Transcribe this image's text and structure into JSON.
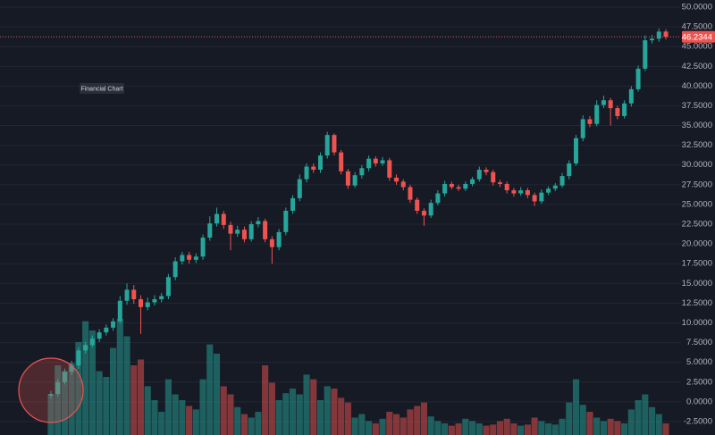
{
  "chart_data": {
    "type": "candlestick",
    "title": "Financial Chart",
    "up_color": "#26a69a",
    "down_color": "#ef5350",
    "grid": true,
    "ylim": [
      -4.2,
      50.9
    ],
    "yticks": [
      {
        "value": -2.5,
        "label": "-2.5000"
      },
      {
        "value": 0,
        "label": "0.0000"
      },
      {
        "value": 2.5,
        "label": "2.5000"
      },
      {
        "value": 5,
        "label": "5.0000"
      },
      {
        "value": 7.5,
        "label": "7.5000"
      },
      {
        "value": 10,
        "label": "10.0000"
      },
      {
        "value": 12.5,
        "label": "12.5000"
      },
      {
        "value": 15,
        "label": "15.0000"
      },
      {
        "value": 17.5,
        "label": "17.5000"
      },
      {
        "value": 20,
        "label": "20.0000"
      },
      {
        "value": 22.5,
        "label": "22.5000"
      },
      {
        "value": 25,
        "label": "25.0000"
      },
      {
        "value": 27.5,
        "label": "27.5000"
      },
      {
        "value": 30,
        "label": "30.0000"
      },
      {
        "value": 32.5,
        "label": "32.5000"
      },
      {
        "value": 35,
        "label": "35.0000"
      },
      {
        "value": 37.5,
        "label": "37.5000"
      },
      {
        "value": 40,
        "label": "40.0000"
      },
      {
        "value": 42.5,
        "label": "42.5000"
      },
      {
        "value": 45,
        "label": "45.0000"
      },
      {
        "value": 47.5,
        "label": "47.5000"
      },
      {
        "value": 50,
        "label": "50.0000"
      }
    ],
    "open": [
      0.8,
      1.0,
      2.5,
      3.8,
      4.6,
      6.5,
      7.2,
      8.0,
      8.8,
      9.4,
      10.2,
      12.8,
      14.2,
      13.0,
      12.0,
      12.6,
      13.0,
      13.4,
      15.8,
      17.8,
      18.6,
      18.0,
      18.4,
      20.8,
      22.6,
      23.8,
      22.4,
      21.3,
      21.8,
      20.6,
      22.5,
      22.9,
      20.6,
      19.6,
      21.5,
      24.2,
      25.8,
      28.2,
      29.8,
      29.4,
      31.2,
      33.8,
      31.6,
      29.2,
      27.4,
      28.7,
      29.6,
      30.8,
      30.2,
      30.6,
      28.4,
      27.9,
      27.2,
      25.6,
      24.2,
      23.6,
      25.2,
      26.4,
      27.6,
      27.2,
      27.0,
      27.6,
      28.2,
      29.4,
      29.1,
      27.8,
      27.6,
      26.8,
      26.4,
      26.8,
      26.2,
      25.4,
      26.5,
      27.0,
      27.4,
      28.6,
      30.2,
      33.4,
      35.8,
      35.2,
      37.6,
      38.2,
      37.2,
      36.2,
      37.8,
      39.6,
      42.2,
      45.8,
      46.0,
      46.9
    ],
    "high": [
      1.4,
      2.9,
      4.2,
      5.2,
      6.9,
      7.6,
      8.4,
      9.2,
      9.8,
      10.6,
      13.4,
      15.0,
      14.8,
      13.5,
      13.2,
      13.5,
      13.8,
      16.2,
      18.3,
      19.0,
      19.0,
      18.8,
      21.2,
      23.5,
      24.6,
      24.2,
      22.8,
      22.3,
      22.2,
      22.9,
      23.4,
      23.2,
      21.0,
      21.9,
      24.6,
      26.2,
      28.8,
      30.2,
      30.2,
      31.6,
      34.2,
      34.0,
      31.9,
      29.5,
      29.1,
      30.0,
      31.2,
      31.1,
      31.0,
      30.9,
      28.8,
      28.2,
      27.5,
      25.9,
      24.5,
      25.6,
      26.8,
      28.0,
      27.9,
      27.5,
      27.9,
      28.5,
      29.8,
      29.7,
      29.4,
      28.1,
      27.9,
      27.1,
      27.2,
      27.1,
      26.5,
      26.9,
      27.3,
      27.7,
      29.0,
      30.6,
      33.8,
      36.3,
      36.2,
      38.2,
      38.8,
      38.5,
      37.5,
      38.2,
      40.0,
      42.6,
      46.4,
      46.5,
      47.3,
      47.2
    ],
    "low": [
      0.4,
      0.7,
      2.2,
      3.4,
      4.2,
      6.1,
      6.9,
      7.6,
      8.4,
      9.0,
      9.9,
      12.3,
      12.4,
      8.6,
      11.6,
      12.2,
      12.6,
      13.0,
      15.4,
      17.4,
      17.5,
      17.6,
      18.0,
      20.4,
      22.2,
      21.9,
      19.2,
      20.9,
      20.2,
      20.3,
      22.1,
      20.2,
      17.5,
      19.2,
      21.1,
      23.8,
      25.4,
      27.8,
      29.0,
      29.0,
      30.8,
      31.2,
      28.8,
      27.0,
      27.1,
      28.3,
      29.2,
      29.8,
      29.9,
      28.0,
      27.5,
      26.8,
      25.2,
      23.8,
      22.3,
      23.3,
      24.9,
      26.0,
      26.9,
      26.7,
      26.7,
      27.3,
      27.9,
      28.7,
      27.4,
      27.2,
      26.4,
      26.0,
      26.1,
      25.8,
      24.8,
      25.1,
      26.2,
      26.7,
      27.1,
      28.2,
      29.9,
      33.0,
      34.8,
      34.9,
      37.2,
      35.0,
      35.8,
      35.9,
      37.4,
      39.3,
      41.9,
      45.4,
      45.6,
      45.9
    ],
    "close": [
      1.0,
      2.5,
      3.8,
      4.6,
      6.5,
      7.2,
      8.0,
      8.8,
      9.4,
      10.2,
      12.8,
      14.2,
      13.0,
      12.0,
      12.6,
      13.0,
      13.4,
      15.8,
      17.8,
      18.6,
      18.0,
      18.4,
      20.8,
      22.6,
      23.8,
      22.4,
      21.3,
      21.8,
      20.6,
      22.5,
      22.9,
      20.6,
      19.6,
      21.5,
      24.2,
      25.8,
      28.2,
      29.8,
      29.4,
      31.2,
      33.8,
      31.6,
      29.2,
      27.4,
      28.7,
      29.6,
      30.8,
      30.2,
      30.6,
      28.4,
      27.9,
      27.2,
      25.6,
      24.2,
      23.6,
      25.2,
      26.4,
      27.6,
      27.2,
      27.0,
      27.6,
      28.2,
      29.4,
      29.1,
      27.8,
      27.6,
      26.8,
      26.4,
      26.8,
      26.2,
      25.4,
      26.5,
      27.0,
      27.4,
      28.6,
      30.2,
      33.4,
      35.8,
      35.2,
      37.6,
      38.2,
      37.2,
      36.2,
      37.8,
      39.6,
      42.2,
      45.8,
      46.0,
      46.9,
      46.2344
    ],
    "volume": [
      35,
      60,
      55,
      62,
      80,
      98,
      90,
      55,
      50,
      75,
      100,
      85,
      60,
      65,
      42,
      30,
      20,
      48,
      35,
      30,
      25,
      22,
      48,
      78,
      70,
      42,
      35,
      24,
      18,
      15,
      20,
      60,
      45,
      30,
      36,
      40,
      35,
      52,
      48,
      30,
      42,
      40,
      32,
      28,
      15,
      18,
      12,
      10,
      14,
      20,
      18,
      15,
      22,
      25,
      28,
      16,
      12,
      10,
      8,
      10,
      14,
      12,
      10,
      8,
      9,
      12,
      14,
      10,
      8,
      9,
      15,
      12,
      10,
      9,
      14,
      28,
      48,
      26,
      20,
      15,
      12,
      14,
      12,
      10,
      22,
      30,
      35,
      24,
      18,
      10
    ]
  }
}
